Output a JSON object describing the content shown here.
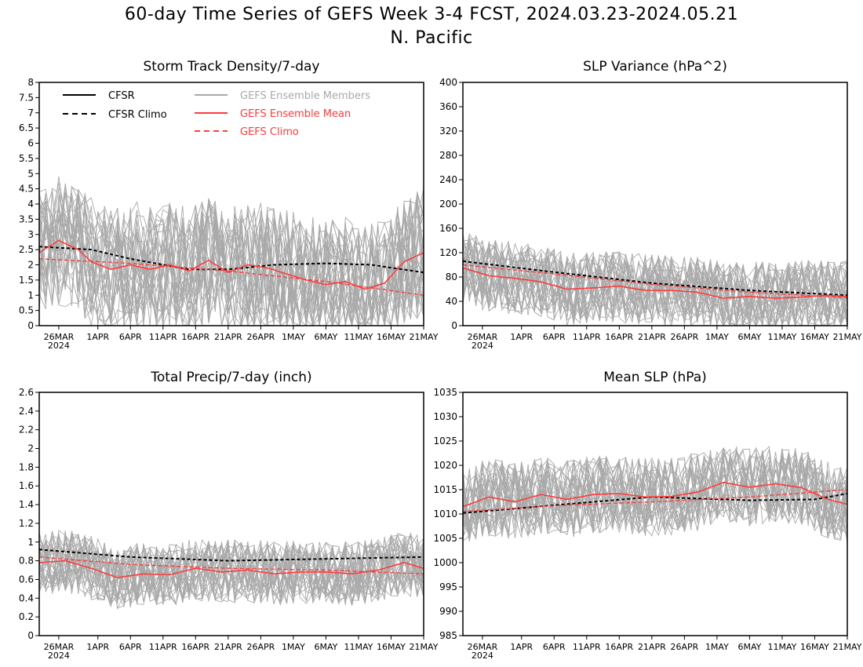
{
  "title_line1": "60-day Time Series of GEFS Week 3-4 FCST, 2024.03.23-2024.05.21",
  "title_line2": "N. Pacific",
  "colors": {
    "cfsr": "#000000",
    "members": "#a9a9a9",
    "ens_mean": "#ff3b3b",
    "gefs_climo": "#ff3b3b"
  },
  "x_axis": {
    "start": "2024-03-23",
    "end": "2024-05-21",
    "tick_labels": [
      "26MAR",
      "1APR",
      "6APR",
      "11APR",
      "16APR",
      "21APR",
      "26APR",
      "1MAY",
      "6MAY",
      "11MAY",
      "16MAY",
      "21MAY"
    ],
    "tick_dates": [
      "2024-03-26",
      "2024-04-01",
      "2024-04-06",
      "2024-04-11",
      "2024-04-16",
      "2024-04-21",
      "2024-04-26",
      "2024-05-01",
      "2024-05-06",
      "2024-05-11",
      "2024-05-16",
      "2024-05-21"
    ],
    "year_label": "2024"
  },
  "legend": {
    "cfsr": "CFSR",
    "cfsr_climo": "CFSR Climo",
    "members": "GEFS Ensemble Members",
    "ens_mean": "GEFS Ensemble Mean",
    "gefs_climo": "GEFS Climo"
  },
  "chart_data": [
    {
      "type": "line",
      "title": "Storm Track Density/7-day",
      "ylim": [
        0,
        8
      ],
      "yticks": [
        "0",
        "0.5",
        "1",
        "1.5",
        "2",
        "2.5",
        "3",
        "3.5",
        "4",
        "4.5",
        "5",
        "5.5",
        "6",
        "6.5",
        "7",
        "7.5",
        "8"
      ],
      "members_range": [
        0,
        5
      ],
      "series": [
        {
          "name": "CFSR Climo",
          "x": [
            "2024-03-23",
            "2024-03-31",
            "2024-04-06",
            "2024-04-15",
            "2024-04-21",
            "2024-04-28",
            "2024-05-06",
            "2024-05-13",
            "2024-05-21"
          ],
          "values": [
            2.6,
            2.5,
            2.2,
            1.85,
            1.85,
            2.0,
            2.05,
            2.0,
            1.75
          ]
        },
        {
          "name": "GEFS Climo",
          "x": [
            "2024-03-23",
            "2024-04-06",
            "2024-04-21",
            "2024-05-06",
            "2024-05-21"
          ],
          "values": [
            2.2,
            2.05,
            1.8,
            1.45,
            1.0
          ]
        },
        {
          "name": "GEFS Ensemble Mean",
          "x": [
            "2024-03-23",
            "2024-03-26",
            "2024-03-29",
            "2024-03-31",
            "2024-04-03",
            "2024-04-06",
            "2024-04-09",
            "2024-04-12",
            "2024-04-15",
            "2024-04-18",
            "2024-04-21",
            "2024-04-24",
            "2024-04-27",
            "2024-04-30",
            "2024-05-03",
            "2024-05-06",
            "2024-05-09",
            "2024-05-12",
            "2024-05-15",
            "2024-05-18",
            "2024-05-21"
          ],
          "values": [
            2.4,
            2.8,
            2.5,
            2.1,
            1.85,
            2.0,
            1.85,
            2.0,
            1.8,
            2.15,
            1.75,
            2.0,
            1.9,
            1.7,
            1.5,
            1.35,
            1.45,
            1.2,
            1.4,
            2.1,
            2.4
          ]
        }
      ]
    },
    {
      "type": "line",
      "title": "SLP Variance (hPa^2)",
      "ylim": [
        0,
        400
      ],
      "yticks": [
        "0",
        "40",
        "80",
        "120",
        "160",
        "200",
        "240",
        "280",
        "320",
        "360",
        "400"
      ],
      "members_range": [
        30,
        170
      ],
      "series": [
        {
          "name": "CFSR Climo",
          "x": [
            "2024-03-23",
            "2024-04-06",
            "2024-04-21",
            "2024-05-06",
            "2024-05-21"
          ],
          "values": [
            106,
            88,
            70,
            58,
            50
          ]
        },
        {
          "name": "GEFS Climo",
          "x": [
            "2024-03-23",
            "2024-04-06",
            "2024-04-21",
            "2024-05-06",
            "2024-05-21"
          ],
          "values": [
            100,
            85,
            68,
            55,
            46
          ]
        },
        {
          "name": "GEFS Ensemble Mean",
          "x": [
            "2024-03-23",
            "2024-03-27",
            "2024-03-31",
            "2024-04-04",
            "2024-04-08",
            "2024-04-12",
            "2024-04-16",
            "2024-04-20",
            "2024-04-24",
            "2024-04-28",
            "2024-05-02",
            "2024-05-06",
            "2024-05-10",
            "2024-05-14",
            "2024-05-18",
            "2024-05-21"
          ],
          "values": [
            95,
            82,
            78,
            72,
            60,
            62,
            65,
            58,
            58,
            55,
            45,
            48,
            45,
            47,
            50,
            48
          ]
        }
      ]
    },
    {
      "type": "line",
      "title": "Total Precip/7-day (inch)",
      "ylim": [
        0,
        2.6
      ],
      "yticks": [
        "0",
        "0.2",
        "0.4",
        "0.6",
        "0.8",
        "1",
        "1.2",
        "1.4",
        "1.6",
        "1.8",
        "2",
        "2.2",
        "2.4",
        "2.6"
      ],
      "members_range": [
        0.3,
        1.1
      ],
      "series": [
        {
          "name": "CFSR Climo",
          "x": [
            "2024-03-23",
            "2024-04-06",
            "2024-04-21",
            "2024-05-06",
            "2024-05-21"
          ],
          "values": [
            0.92,
            0.84,
            0.8,
            0.82,
            0.84
          ]
        },
        {
          "name": "GEFS Climo",
          "x": [
            "2024-03-23",
            "2024-04-06",
            "2024-04-21",
            "2024-05-06",
            "2024-05-21"
          ],
          "values": [
            0.84,
            0.76,
            0.72,
            0.7,
            0.66
          ]
        },
        {
          "name": "GEFS Ensemble Mean",
          "x": [
            "2024-03-23",
            "2024-03-27",
            "2024-03-31",
            "2024-04-04",
            "2024-04-08",
            "2024-04-12",
            "2024-04-16",
            "2024-04-20",
            "2024-04-24",
            "2024-04-28",
            "2024-05-02",
            "2024-05-06",
            "2024-05-10",
            "2024-05-14",
            "2024-05-18",
            "2024-05-21"
          ],
          "values": [
            0.78,
            0.8,
            0.72,
            0.62,
            0.66,
            0.65,
            0.72,
            0.68,
            0.7,
            0.66,
            0.68,
            0.68,
            0.66,
            0.7,
            0.78,
            0.72
          ]
        }
      ]
    },
    {
      "type": "line",
      "title": "Mean SLP (hPa)",
      "ylim": [
        985,
        1035
      ],
      "yticks": [
        "985",
        "990",
        "995",
        "1000",
        "1005",
        "1010",
        "1015",
        "1020",
        "1025",
        "1030",
        "1035"
      ],
      "members_range": [
        1003,
        1022
      ],
      "series": [
        {
          "name": "CFSR Climo",
          "x": [
            "2024-03-23",
            "2024-04-06",
            "2024-04-21",
            "2024-05-06",
            "2024-05-16",
            "2024-05-21"
          ],
          "values": [
            1010.2,
            1011.8,
            1013.5,
            1012.8,
            1013.0,
            1014.2
          ]
        },
        {
          "name": "GEFS Climo",
          "x": [
            "2024-03-23",
            "2024-04-06",
            "2024-04-21",
            "2024-05-06",
            "2024-05-21"
          ],
          "values": [
            1010.5,
            1011.7,
            1012.5,
            1013.5,
            1015.0
          ]
        },
        {
          "name": "GEFS Ensemble Mean",
          "x": [
            "2024-03-23",
            "2024-03-27",
            "2024-03-31",
            "2024-04-04",
            "2024-04-08",
            "2024-04-12",
            "2024-04-16",
            "2024-04-20",
            "2024-04-24",
            "2024-04-28",
            "2024-05-02",
            "2024-05-06",
            "2024-05-10",
            "2024-05-14",
            "2024-05-18",
            "2024-05-21"
          ],
          "values": [
            1011.5,
            1013.5,
            1012.5,
            1014.0,
            1013.0,
            1014.0,
            1014.2,
            1013.5,
            1013.6,
            1014.5,
            1016.5,
            1015.5,
            1016.2,
            1015.4,
            1013.0,
            1012.0
          ]
        }
      ]
    }
  ]
}
